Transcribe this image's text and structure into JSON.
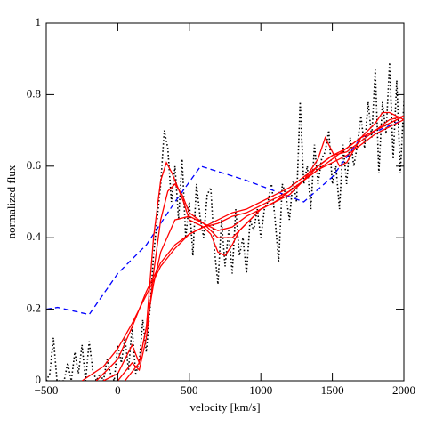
{
  "chart_data": {
    "type": "line",
    "x_label": "velocity [km/s]",
    "y_label": "normalized flux",
    "xlim": [
      -500,
      2000
    ],
    "xticks": [
      {
        "value": -500,
        "label": "−500"
      },
      0,
      500,
      1000,
      1500,
      2000
    ],
    "ylim": [
      0,
      1
    ],
    "yticks": [
      0,
      0.2,
      0.4,
      0.6,
      0.8,
      1
    ],
    "series": [
      {
        "color": "#000000",
        "style": "dotted",
        "x": [
          -500,
          -475,
          -450,
          -425,
          -400,
          -375,
          -350,
          -325,
          -300,
          -275,
          -250,
          -225,
          -200,
          -175,
          -150,
          -125,
          -100,
          -75,
          -50,
          -25,
          0,
          25,
          50,
          75,
          100,
          125,
          150,
          175,
          200,
          225,
          250,
          275,
          300,
          325,
          350,
          375,
          400,
          425,
          450,
          475,
          500,
          525,
          550,
          575,
          600,
          625,
          650,
          675,
          700,
          725,
          750,
          775,
          800,
          825,
          850,
          875,
          900,
          925,
          950,
          975,
          1000,
          1025,
          1050,
          1075,
          1100,
          1125,
          1150,
          1175,
          1200,
          1225,
          1250,
          1275,
          1300,
          1325,
          1350,
          1375,
          1400,
          1425,
          1450,
          1475,
          1500,
          1525,
          1550,
          1575,
          1600,
          1625,
          1650,
          1675,
          1700,
          1725,
          1750,
          1775,
          1800,
          1825,
          1850,
          1875,
          1900,
          1925,
          1950,
          1975,
          2000
        ],
        "values": [
          0,
          0.02,
          0.12,
          0,
          0,
          0,
          0.05,
          0,
          0.08,
          0.02,
          0.1,
          0,
          0.11,
          0.03,
          0,
          0.02,
          0,
          0.06,
          0.02,
          0,
          0.1,
          0.05,
          0.12,
          0.03,
          0.15,
          0.02,
          0.05,
          0.17,
          0.08,
          0.2,
          0.35,
          0.45,
          0.55,
          0.7,
          0.65,
          0.5,
          0.6,
          0.45,
          0.62,
          0.4,
          0.5,
          0.35,
          0.55,
          0.46,
          0.4,
          0.52,
          0.54,
          0.37,
          0.27,
          0.45,
          0.32,
          0.42,
          0.3,
          0.48,
          0.35,
          0.4,
          0.3,
          0.45,
          0.42,
          0.48,
          0.4,
          0.48,
          0.5,
          0.55,
          0.45,
          0.33,
          0.55,
          0.52,
          0.45,
          0.56,
          0.5,
          0.78,
          0.55,
          0.6,
          0.48,
          0.66,
          0.55,
          0.62,
          0.64,
          0.7,
          0.55,
          0.6,
          0.48,
          0.66,
          0.55,
          0.68,
          0.6,
          0.66,
          0.74,
          0.65,
          0.78,
          0.68,
          0.87,
          0.58,
          0.78,
          0.69,
          0.89,
          0.62,
          0.84,
          0.58,
          0.78
        ]
      },
      {
        "color": "#0000ff",
        "style": "dashed",
        "x": [
          -500,
          -420,
          -200,
          0,
          200,
          400,
          580,
          900,
          1100,
          1300,
          1500,
          1700,
          2000
        ],
        "values": [
          0.2,
          0.205,
          0.185,
          0.3,
          0.38,
          0.5,
          0.6,
          0.56,
          0.53,
          0.5,
          0.57,
          0.68,
          0.73
        ]
      },
      {
        "color": "#ff0000",
        "style": "solid",
        "x": [
          -100,
          0,
          50,
          100,
          150,
          200,
          250,
          300,
          340,
          380,
          420,
          460,
          500,
          550,
          600,
          650,
          700,
          750,
          800,
          850,
          900,
          1000,
          1100,
          1200,
          1300,
          1400,
          1450,
          1500,
          1550,
          1600,
          1700,
          1800,
          1850,
          1900,
          1950,
          2000
        ],
        "values": [
          0,
          0.02,
          0.06,
          0.1,
          0.05,
          0.15,
          0.4,
          0.56,
          0.61,
          0.58,
          0.54,
          0.5,
          0.45,
          0.44,
          0.43,
          0.41,
          0.36,
          0.35,
          0.38,
          0.42,
          0.44,
          0.48,
          0.5,
          0.52,
          0.56,
          0.62,
          0.68,
          0.64,
          0.6,
          0.61,
          0.68,
          0.72,
          0.75,
          0.75,
          0.74,
          0.73
        ]
      },
      {
        "color": "#ff0000",
        "style": "solid",
        "x": [
          0,
          100,
          150,
          200,
          250,
          300,
          350,
          400,
          450,
          500,
          600,
          700,
          800,
          900,
          1000,
          1100,
          1200,
          1300,
          1400,
          1500,
          1600,
          1700,
          1800,
          1900,
          2000
        ],
        "values": [
          0,
          0.05,
          0.03,
          0.12,
          0.3,
          0.45,
          0.53,
          0.55,
          0.52,
          0.47,
          0.44,
          0.4,
          0.4,
          0.44,
          0.48,
          0.5,
          0.53,
          0.56,
          0.6,
          0.63,
          0.64,
          0.67,
          0.7,
          0.73,
          0.74
        ]
      },
      {
        "color": "#ff0000",
        "style": "solid",
        "x": [
          50,
          150,
          200,
          250,
          300,
          400,
          500,
          600,
          700,
          800,
          900,
          1000,
          1100,
          1200,
          1300,
          1400,
          1500,
          1600,
          1700,
          1800,
          1900,
          2000
        ],
        "values": [
          0,
          0.05,
          0.15,
          0.27,
          0.36,
          0.45,
          0.46,
          0.44,
          0.42,
          0.43,
          0.46,
          0.48,
          0.5,
          0.53,
          0.56,
          0.59,
          0.61,
          0.63,
          0.66,
          0.69,
          0.71,
          0.73
        ]
      },
      {
        "color": "#ff0000",
        "style": "solid",
        "x": [
          -150,
          0,
          100,
          200,
          300,
          400,
          500,
          600,
          700,
          800,
          900,
          1000,
          1100,
          1200,
          1300,
          1400,
          1500,
          1600,
          1700,
          1800,
          1900,
          2000
        ],
        "values": [
          0,
          0.06,
          0.15,
          0.25,
          0.33,
          0.38,
          0.41,
          0.43,
          0.44,
          0.46,
          0.47,
          0.49,
          0.51,
          0.53,
          0.56,
          0.59,
          0.62,
          0.65,
          0.68,
          0.7,
          0.72,
          0.74
        ]
      },
      {
        "color": "#ff0000",
        "style": "solid",
        "x": [
          -250,
          -100,
          0,
          100,
          200,
          300,
          400,
          500,
          600,
          700,
          800,
          900,
          1000,
          1100,
          1200,
          1300,
          1400,
          1500,
          1600,
          1700,
          1800,
          1900,
          2000
        ],
        "values": [
          0,
          0.04,
          0.09,
          0.16,
          0.24,
          0.32,
          0.37,
          0.41,
          0.43,
          0.45,
          0.47,
          0.48,
          0.5,
          0.52,
          0.54,
          0.57,
          0.6,
          0.63,
          0.65,
          0.68,
          0.7,
          0.72,
          0.74
        ]
      }
    ]
  }
}
